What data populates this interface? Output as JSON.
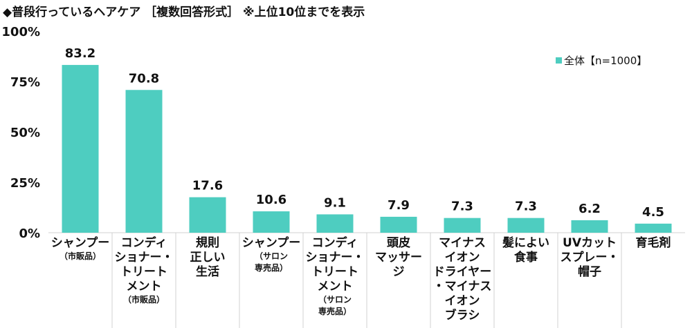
{
  "chart_data": {
    "type": "bar",
    "title": "◆普段行っているヘアケア ［複数回答形式］ ※上位10位までを表示",
    "categories": [
      [
        {
          "t": "シャンプー"
        },
        {
          "t": "（市販品）",
          "small": true
        }
      ],
      [
        {
          "t": "コンディ"
        },
        {
          "t": "ショナー・"
        },
        {
          "t": "トリート"
        },
        {
          "t": "メント"
        },
        {
          "t": "（市販品）",
          "small": true
        }
      ],
      [
        {
          "t": "規則"
        },
        {
          "t": "正しい"
        },
        {
          "t": "生活"
        }
      ],
      [
        {
          "t": "シャンプー"
        },
        {
          "t": "（サロン",
          "small": true
        },
        {
          "t": "専売品）",
          "small": true
        }
      ],
      [
        {
          "t": "コンディ"
        },
        {
          "t": "ショナー・"
        },
        {
          "t": "トリート"
        },
        {
          "t": "メント"
        },
        {
          "t": "（サロン",
          "small": true
        },
        {
          "t": "専売品）",
          "small": true
        }
      ],
      [
        {
          "t": "頭皮"
        },
        {
          "t": "マッサー"
        },
        {
          "t": "ジ"
        }
      ],
      [
        {
          "t": "マイナス"
        },
        {
          "t": "イオン"
        },
        {
          "t": "ドライヤー"
        },
        {
          "t": "・マイナス"
        },
        {
          "t": "イオン"
        },
        {
          "t": "ブラシ"
        }
      ],
      [
        {
          "t": "髪によい"
        },
        {
          "t": "食事"
        }
      ],
      [
        {
          "t": "UVカット"
        },
        {
          "t": "スプレー・"
        },
        {
          "t": "帽子"
        }
      ],
      [
        {
          "t": "育毛剤"
        }
      ]
    ],
    "series": [
      {
        "name": "全体【n=1000】",
        "values": [
          83.2,
          70.8,
          17.6,
          10.6,
          9.1,
          7.9,
          7.3,
          7.3,
          6.2,
          4.5
        ],
        "color": "#4ecdc0"
      }
    ],
    "yticks": [
      "0%",
      "25%",
      "50%",
      "75%",
      "100%"
    ],
    "ylim": [
      0,
      100
    ],
    "grid": false,
    "legend": "top-right"
  }
}
